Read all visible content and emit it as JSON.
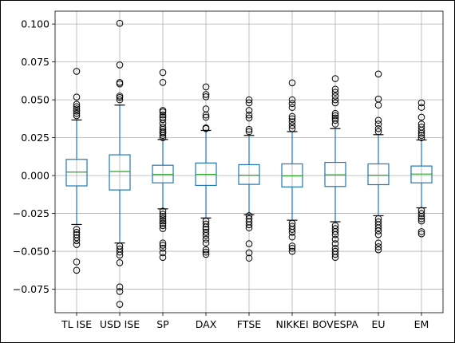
{
  "chart_data": {
    "type": "box",
    "categories": [
      "TL ISE",
      "USD ISE",
      "SP",
      "DAX",
      "FTSE",
      "NIKKEI",
      "BOVESPA",
      "EU",
      "EM"
    ],
    "ylim": [
      -0.0905,
      0.1085
    ],
    "yticks": [
      -0.075,
      -0.05,
      -0.025,
      0.0,
      0.025,
      0.05,
      0.075,
      0.1
    ],
    "ytick_labels": [
      "−0.075",
      "−0.050",
      "−0.025",
      "0.000",
      "0.025",
      "0.050",
      "0.075",
      "0.100"
    ],
    "grid": true,
    "colors": {
      "box": "#1f77b4",
      "median": "#2ca02c",
      "flier": "#000000",
      "grid": "#b0b0b0"
    },
    "boxes": [
      {
        "name": "TL ISE",
        "q1": -0.0068,
        "median": 0.0023,
        "q3": 0.0107,
        "whislo": -0.0323,
        "whishi": 0.0367,
        "fliers": [
          0.0688,
          0.0518,
          0.047,
          0.0455,
          0.044,
          0.0425,
          0.041,
          0.0395,
          -0.0355,
          -0.0375,
          -0.039,
          -0.041,
          -0.043,
          -0.0455,
          -0.057,
          -0.0625
        ]
      },
      {
        "name": "USD ISE",
        "q1": -0.0095,
        "median": 0.0027,
        "q3": 0.0137,
        "whislo": -0.0445,
        "whishi": 0.0465,
        "fliers": [
          0.1005,
          0.073,
          0.0615,
          0.0605,
          0.0525,
          0.0515,
          0.05,
          -0.0465,
          -0.0485,
          -0.0505,
          -0.0525,
          -0.0575,
          -0.0735,
          -0.0765,
          -0.085
        ]
      },
      {
        "name": "SP",
        "q1": -0.0048,
        "median": 0.0007,
        "q3": 0.0068,
        "whislo": -0.022,
        "whishi": 0.0238,
        "fliers": [
          0.068,
          0.0615,
          0.043,
          0.042,
          0.04,
          0.0385,
          0.037,
          0.0345,
          0.032,
          0.0305,
          0.029,
          0.028,
          0.0265,
          0.025,
          -0.0235,
          -0.0255,
          -0.027,
          -0.0285,
          -0.03,
          -0.0315,
          -0.033,
          -0.035,
          -0.0445,
          -0.046,
          -0.048,
          -0.051,
          -0.054
        ]
      },
      {
        "name": "DAX",
        "q1": -0.0065,
        "median": 0.0008,
        "q3": 0.0083,
        "whislo": -0.028,
        "whishi": 0.0298,
        "fliers": [
          0.0585,
          0.0535,
          0.052,
          0.044,
          0.04,
          0.0385,
          0.0315,
          0.031,
          -0.03,
          -0.032,
          -0.034,
          -0.0355,
          -0.0375,
          -0.0395,
          -0.042,
          -0.0445,
          -0.049,
          -0.0505,
          -0.052
        ]
      },
      {
        "name": "FTSE",
        "q1": -0.0058,
        "median": 0.0002,
        "q3": 0.0072,
        "whislo": -0.0258,
        "whishi": 0.0265,
        "fliers": [
          0.05,
          0.048,
          0.043,
          0.04,
          0.038,
          0.0305,
          0.029,
          -0.0265,
          -0.0285,
          -0.0305,
          -0.0325,
          -0.0345,
          -0.045,
          -0.051,
          -0.0545
        ]
      },
      {
        "name": "NIKKEI",
        "q1": -0.0075,
        "median": -0.0002,
        "q3": 0.0077,
        "whislo": -0.0295,
        "whishi": 0.029,
        "fliers": [
          0.0612,
          0.05,
          0.0475,
          0.045,
          0.039,
          0.0375,
          0.0355,
          0.033,
          0.031,
          -0.0315,
          -0.0335,
          -0.0355,
          -0.0375,
          -0.0405,
          -0.0465,
          -0.048,
          -0.05
        ]
      },
      {
        "name": "BOVESPA",
        "q1": -0.0072,
        "median": 0.0005,
        "q3": 0.0087,
        "whislo": -0.0305,
        "whishi": 0.031,
        "fliers": [
          0.064,
          0.057,
          0.055,
          0.0525,
          0.05,
          0.048,
          0.041,
          0.0395,
          0.038,
          0.0365,
          0.034,
          -0.033,
          -0.035,
          -0.037,
          -0.039,
          -0.042,
          -0.045,
          -0.048,
          -0.05,
          -0.052,
          -0.054
        ]
      },
      {
        "name": "EU",
        "q1": -0.006,
        "median": 0.0002,
        "q3": 0.0077,
        "whislo": -0.0265,
        "whishi": 0.027,
        "fliers": [
          0.067,
          0.0505,
          0.0465,
          0.0365,
          0.034,
          0.031,
          0.029,
          -0.0285,
          -0.0305,
          -0.0325,
          -0.0345,
          -0.0365,
          -0.039,
          -0.0445,
          -0.047,
          -0.049
        ]
      },
      {
        "name": "EM",
        "q1": -0.0048,
        "median": 0.001,
        "q3": 0.0063,
        "whislo": -0.0213,
        "whishi": 0.0235,
        "fliers": [
          0.048,
          0.045,
          0.0385,
          0.034,
          0.032,
          0.03,
          0.028,
          0.0265,
          0.025,
          -0.023,
          -0.025,
          -0.027,
          -0.0285,
          -0.03,
          -0.037,
          -0.0385
        ]
      }
    ]
  }
}
